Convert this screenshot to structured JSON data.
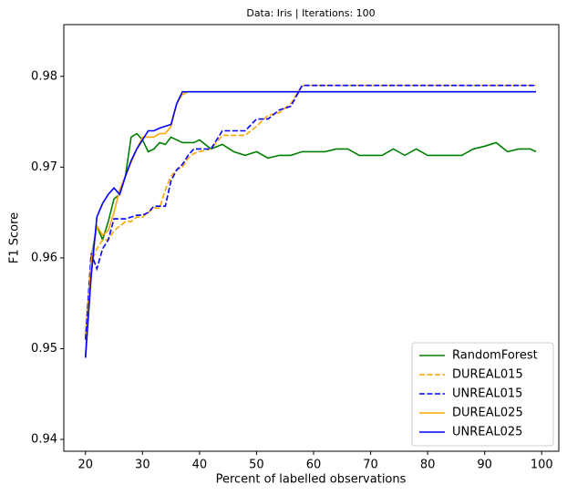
{
  "chart_data": {
    "type": "line",
    "title": "Data: Iris | Iterations: 100",
    "x_label": "Percent of labelled observations",
    "y_label": "F1 Score",
    "x": [
      20,
      21,
      22,
      23,
      24,
      25,
      26,
      27,
      28,
      29,
      30,
      31,
      32,
      33,
      34,
      35,
      36,
      37,
      38,
      39,
      40,
      42,
      44,
      46,
      48,
      50,
      52,
      54,
      56,
      58,
      60,
      62,
      64,
      66,
      68,
      70,
      72,
      74,
      76,
      78,
      80,
      82,
      84,
      86,
      88,
      90,
      92,
      94,
      96,
      98,
      99
    ],
    "xlim": [
      16.2,
      103
    ],
    "xticks": [
      20,
      30,
      40,
      50,
      60,
      70,
      80,
      90,
      100
    ],
    "ylim": [
      0.9387,
      0.9857
    ],
    "yticks": [
      0.94,
      0.95,
      0.96,
      0.97,
      0.98
    ],
    "legend": "lower right",
    "series": [
      {
        "name": "RandomForest",
        "color": "green",
        "linestyle": "solid",
        "values": [
          0.949,
          0.96,
          0.9635,
          0.962,
          0.964,
          0.9665,
          0.967,
          0.969,
          0.9733,
          0.9737,
          0.973,
          0.9717,
          0.972,
          0.9727,
          0.9725,
          0.9733,
          0.973,
          0.9727,
          0.9727,
          0.9727,
          0.973,
          0.972,
          0.9725,
          0.9717,
          0.9713,
          0.9717,
          0.971,
          0.9713,
          0.9713,
          0.9717,
          0.9717,
          0.9717,
          0.972,
          0.972,
          0.9713,
          0.9713,
          0.9713,
          0.972,
          0.9713,
          0.972,
          0.9713,
          0.9713,
          0.9713,
          0.9713,
          0.972,
          0.9723,
          0.9727,
          0.9717,
          0.972,
          0.972,
          0.9717
        ]
      },
      {
        "name": "DUREAL015",
        "color": "orange",
        "linestyle": "dashed",
        "values": [
          0.9515,
          0.9595,
          0.961,
          0.962,
          0.962,
          0.963,
          0.9635,
          0.964,
          0.964,
          0.9645,
          0.9645,
          0.965,
          0.9655,
          0.9655,
          0.9675,
          0.969,
          0.9697,
          0.97,
          0.971,
          0.9715,
          0.9717,
          0.972,
          0.9735,
          0.9735,
          0.9735,
          0.9745,
          0.9757,
          0.976,
          0.977,
          0.979,
          0.979,
          0.979,
          0.979,
          0.979,
          0.979,
          0.979,
          0.979,
          0.979,
          0.979,
          0.979,
          0.979,
          0.979,
          0.979,
          0.979,
          0.979,
          0.979,
          0.979,
          0.979,
          0.979,
          0.979,
          0.979
        ]
      },
      {
        "name": "UNREAL015",
        "color": "blue",
        "linestyle": "dashed",
        "values": [
          0.951,
          0.9605,
          0.9588,
          0.961,
          0.962,
          0.9643,
          0.9643,
          0.9643,
          0.9645,
          0.9647,
          0.9647,
          0.965,
          0.9657,
          0.9657,
          0.9657,
          0.9685,
          0.9697,
          0.9703,
          0.9713,
          0.972,
          0.972,
          0.972,
          0.974,
          0.974,
          0.974,
          0.9753,
          0.9753,
          0.9763,
          0.9767,
          0.979,
          0.979,
          0.979,
          0.979,
          0.979,
          0.979,
          0.979,
          0.979,
          0.979,
          0.979,
          0.979,
          0.979,
          0.979,
          0.979,
          0.979,
          0.979,
          0.979,
          0.979,
          0.979,
          0.979,
          0.979,
          0.979
        ]
      },
      {
        "name": "DUREAL025",
        "color": "orange",
        "linestyle": "solid",
        "values": [
          0.949,
          0.9595,
          0.9635,
          0.9625,
          0.963,
          0.965,
          0.9675,
          0.969,
          0.9705,
          0.972,
          0.9733,
          0.9733,
          0.9733,
          0.9737,
          0.9737,
          0.9745,
          0.977,
          0.978,
          0.9783,
          0.9783,
          0.9783,
          0.9783,
          0.9783,
          0.9783,
          0.9783,
          0.9783,
          0.9783,
          0.9783,
          0.9783,
          0.9783,
          0.9783,
          0.9783,
          0.9783,
          0.9783,
          0.9783,
          0.9783,
          0.9783,
          0.9783,
          0.9783,
          0.9783,
          0.9783,
          0.9783,
          0.9783,
          0.9783,
          0.9783,
          0.9783,
          0.9783,
          0.9783,
          0.9783,
          0.9783,
          0.9783
        ]
      },
      {
        "name": "UNREAL025",
        "color": "blue",
        "linestyle": "solid",
        "values": [
          0.949,
          0.958,
          0.9645,
          0.966,
          0.967,
          0.9677,
          0.967,
          0.969,
          0.9707,
          0.972,
          0.973,
          0.974,
          0.974,
          0.9743,
          0.9745,
          0.9747,
          0.977,
          0.9783,
          0.9783,
          0.9783,
          0.9783,
          0.9783,
          0.9783,
          0.9783,
          0.9783,
          0.9783,
          0.9783,
          0.9783,
          0.9783,
          0.9783,
          0.9783,
          0.9783,
          0.9783,
          0.9783,
          0.9783,
          0.9783,
          0.9783,
          0.9783,
          0.9783,
          0.9783,
          0.9783,
          0.9783,
          0.9783,
          0.9783,
          0.9783,
          0.9783,
          0.9783,
          0.9783,
          0.9783,
          0.9783,
          0.9783
        ]
      }
    ]
  }
}
